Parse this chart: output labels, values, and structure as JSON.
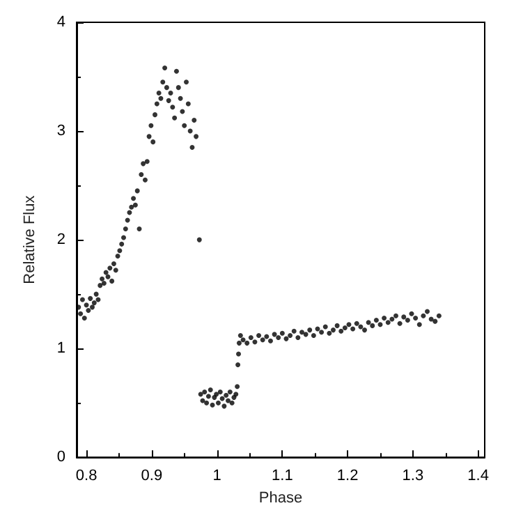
{
  "chart_data": {
    "type": "scatter",
    "xlabel": "Phase",
    "ylabel": "Relative Flux",
    "color": "#000000",
    "marker": "circle",
    "grid": false,
    "xlim": [
      0.785,
      1.41
    ],
    "xticks": [
      {
        "value": 0.8,
        "label": "0.8"
      },
      {
        "value": 0.9,
        "label": "0.9"
      },
      1,
      {
        "value": 1.1,
        "label": "1.1"
      },
      {
        "value": 1.2,
        "label": "1.2"
      },
      {
        "value": 1.3,
        "label": "1.3"
      },
      {
        "value": 1.4,
        "label": "1.4"
      }
    ],
    "ylim": [
      0,
      4
    ],
    "yticks": [
      0,
      1,
      2,
      3,
      4
    ],
    "x": [
      0.788,
      0.791,
      0.794,
      0.797,
      0.8,
      0.803,
      0.806,
      0.809,
      0.812,
      0.815,
      0.818,
      0.821,
      0.824,
      0.827,
      0.83,
      0.833,
      0.836,
      0.839,
      0.842,
      0.845,
      0.848,
      0.851,
      0.854,
      0.857,
      0.86,
      0.863,
      0.866,
      0.869,
      0.872,
      0.875,
      0.878,
      0.881,
      0.884,
      0.887,
      0.89,
      0.893,
      0.896,
      0.899,
      0.902,
      0.905,
      0.908,
      0.911,
      0.914,
      0.917,
      0.92,
      0.923,
      0.926,
      0.929,
      0.932,
      0.935,
      0.938,
      0.941,
      0.944,
      0.947,
      0.95,
      0.953,
      0.956,
      0.959,
      0.962,
      0.965,
      0.968,
      0.973,
      0.975,
      0.978,
      0.981,
      0.984,
      0.987,
      0.99,
      0.993,
      0.996,
      0.999,
      1.002,
      1.005,
      1.008,
      1.011,
      1.014,
      1.017,
      1.02,
      1.023,
      1.026,
      1.029,
      1.031,
      1.032,
      1.033,
      1.034,
      1.036,
      1.04,
      1.046,
      1.052,
      1.058,
      1.064,
      1.07,
      1.076,
      1.082,
      1.088,
      1.094,
      1.1,
      1.106,
      1.112,
      1.118,
      1.124,
      1.13,
      1.136,
      1.142,
      1.148,
      1.154,
      1.16,
      1.166,
      1.172,
      1.178,
      1.184,
      1.19,
      1.196,
      1.202,
      1.208,
      1.214,
      1.22,
      1.226,
      1.232,
      1.238,
      1.244,
      1.25,
      1.256,
      1.262,
      1.268,
      1.274,
      1.28,
      1.286,
      1.292,
      1.298,
      1.304,
      1.31,
      1.316,
      1.322,
      1.328,
      1.334,
      1.34
    ],
    "values": [
      1.38,
      1.32,
      1.45,
      1.28,
      1.4,
      1.35,
      1.46,
      1.38,
      1.42,
      1.5,
      1.45,
      1.58,
      1.64,
      1.6,
      1.7,
      1.66,
      1.74,
      1.62,
      1.78,
      1.72,
      1.85,
      1.9,
      1.96,
      2.02,
      2.1,
      2.18,
      2.25,
      2.3,
      2.38,
      2.32,
      2.45,
      2.1,
      2.6,
      2.7,
      2.55,
      2.72,
      2.95,
      3.05,
      2.9,
      3.15,
      3.25,
      3.35,
      3.3,
      3.45,
      3.58,
      3.4,
      3.28,
      3.35,
      3.22,
      3.12,
      3.55,
      3.4,
      3.3,
      3.18,
      3.05,
      3.45,
      3.25,
      3,
      2.85,
      3.1,
      2.95,
      2,
      0.58,
      0.52,
      0.6,
      0.5,
      0.56,
      0.62,
      0.48,
      0.55,
      0.58,
      0.5,
      0.6,
      0.54,
      0.47,
      0.57,
      0.52,
      0.6,
      0.5,
      0.55,
      0.58,
      0.65,
      0.85,
      0.95,
      1.05,
      1.12,
      1.08,
      1.05,
      1.1,
      1.06,
      1.12,
      1.08,
      1.11,
      1.07,
      1.13,
      1.1,
      1.14,
      1.09,
      1.12,
      1.16,
      1.1,
      1.15,
      1.13,
      1.17,
      1.12,
      1.18,
      1.15,
      1.2,
      1.14,
      1.17,
      1.21,
      1.16,
      1.19,
      1.22,
      1.18,
      1.23,
      1.2,
      1.17,
      1.24,
      1.21,
      1.26,
      1.22,
      1.28,
      1.24,
      1.27,
      1.3,
      1.23,
      1.29,
      1.26,
      1.32,
      1.28,
      1.22,
      1.3,
      1.34,
      1.27,
      1.25,
      1.3
    ]
  }
}
